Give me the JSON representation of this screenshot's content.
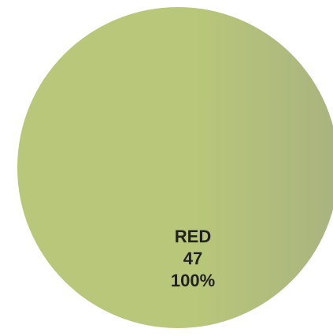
{
  "chart_data": {
    "type": "pie",
    "slices": [
      {
        "name": "RED",
        "value": 47,
        "percent_label": "100%",
        "percent": 100,
        "color": "#b9c77a",
        "color_edge": "#a9b37f"
      }
    ]
  }
}
